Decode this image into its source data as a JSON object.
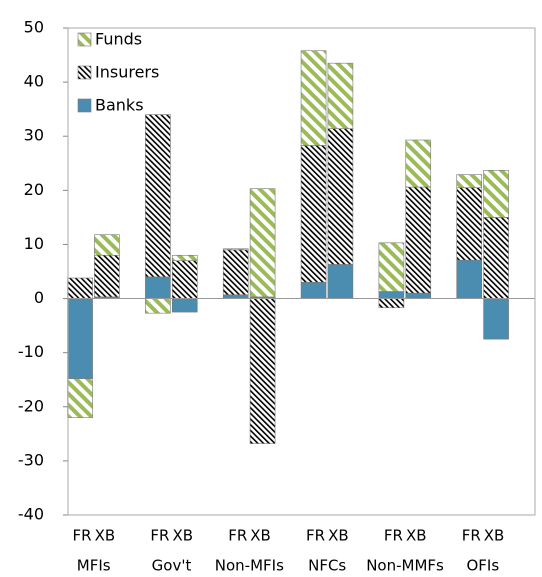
{
  "chart_data": {
    "type": "bar",
    "stacked": true,
    "categories": [
      "FR",
      "XB",
      "FR",
      "XB",
      "FR",
      "XB",
      "FR",
      "XB",
      "FR",
      "XB",
      "FR",
      "XB"
    ],
    "groups": [
      "MFIs",
      "Gov't",
      "Non-MFIs",
      "NFCs",
      "Non-MMFs",
      "OFIs"
    ],
    "series": [
      {
        "name": "Banks",
        "color": "#4a8db0",
        "fill": "solid",
        "values": [
          -14.8,
          0.3,
          4,
          -2.5,
          0.7,
          0.3,
          3,
          6.3,
          1.3,
          1,
          7.1,
          -7.5
        ]
      },
      {
        "name": "Insurers",
        "color": "#000000",
        "fill": "dense-hatch",
        "values": [
          3.8,
          7.7,
          30,
          7,
          8.3,
          -26.8,
          25.3,
          25.1,
          -1.7,
          19.6,
          13.4,
          15
        ]
      },
      {
        "name": "Funds",
        "color": "#9bbb59",
        "fill": "stripes",
        "values": [
          -7.2,
          3.8,
          -2.7,
          1,
          0.2,
          20,
          17.5,
          12.1,
          9,
          8.7,
          2.4,
          8.7
        ]
      }
    ],
    "ylim": [
      -40,
      50
    ],
    "yticks": [
      -40,
      -30,
      -20,
      -10,
      0,
      10,
      20,
      30,
      40,
      50
    ],
    "legend": "upper-left"
  }
}
